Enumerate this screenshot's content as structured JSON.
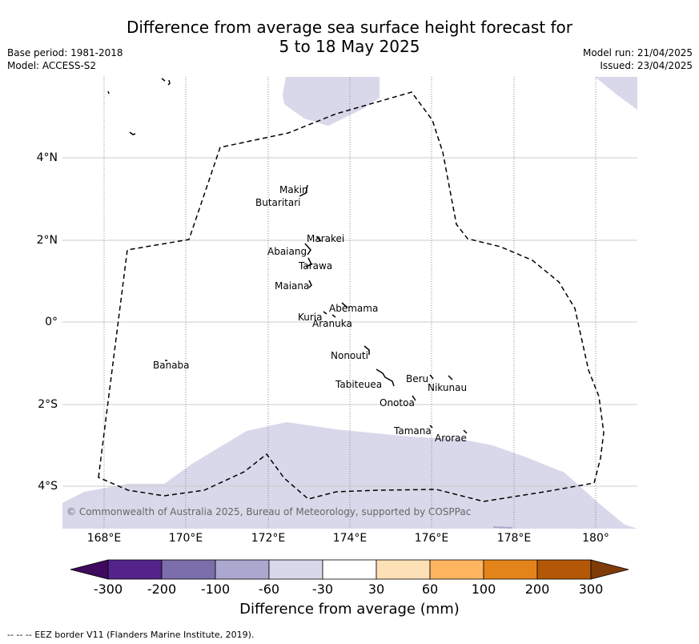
{
  "title_line1": "Difference from average sea surface height forecast for",
  "title_line2": "5 to 18 May 2025",
  "meta_left": {
    "base_period": "Base period: 1981-2018",
    "model": "Model: ACCESS-S2"
  },
  "meta_right": {
    "model_run": "Model run: 21/04/2025",
    "issued": "Issued: 23/04/2025"
  },
  "lat_labels": [
    "4°N",
    "2°N",
    "0°",
    "2°S",
    "4°S"
  ],
  "lon_labels": [
    "168°E",
    "170°E",
    "172°E",
    "174°E",
    "176°E",
    "178°E",
    "180°"
  ],
  "places": {
    "makin": "Makin",
    "butaritari": "Butaritari",
    "marakei": "Marakei",
    "abaiang": "Abaiang",
    "tarawa": "Tarawa",
    "maiana": "Maiana",
    "abemama": "Abemama",
    "kuria": "Kuria",
    "aranuka": "Aranuka",
    "nonouti": "Nonouti",
    "banaba": "Banaba",
    "beru": "Beru",
    "nikunau": "Nikunau",
    "tabiteuea": "Tabiteuea",
    "onotoa": "Onotoa",
    "tamana": "Tamana",
    "arorae": "Arorae"
  },
  "copyright": "© Commonwealth of Australia 2025, Bureau of Meteorology, supported by COSPPac",
  "colorbar": {
    "title": "Difference from average (mm)",
    "ticks": [
      "-300",
      "-200",
      "-100",
      "-60",
      "-30",
      "30",
      "60",
      "100",
      "200",
      "300"
    ],
    "colors": [
      "#3f0a5e",
      "#54238a",
      "#7b6eaa",
      "#aba7cf",
      "#d8d8ea",
      "#ffffff",
      "#fee0b6",
      "#fdb560",
      "#e3841a",
      "#b35806",
      "#7f3b08"
    ]
  },
  "map_fill_color": "#d8d8ea",
  "footnote": "--  --  -- EEZ border V11 (Flanders Marine Institute, 2019)."
}
